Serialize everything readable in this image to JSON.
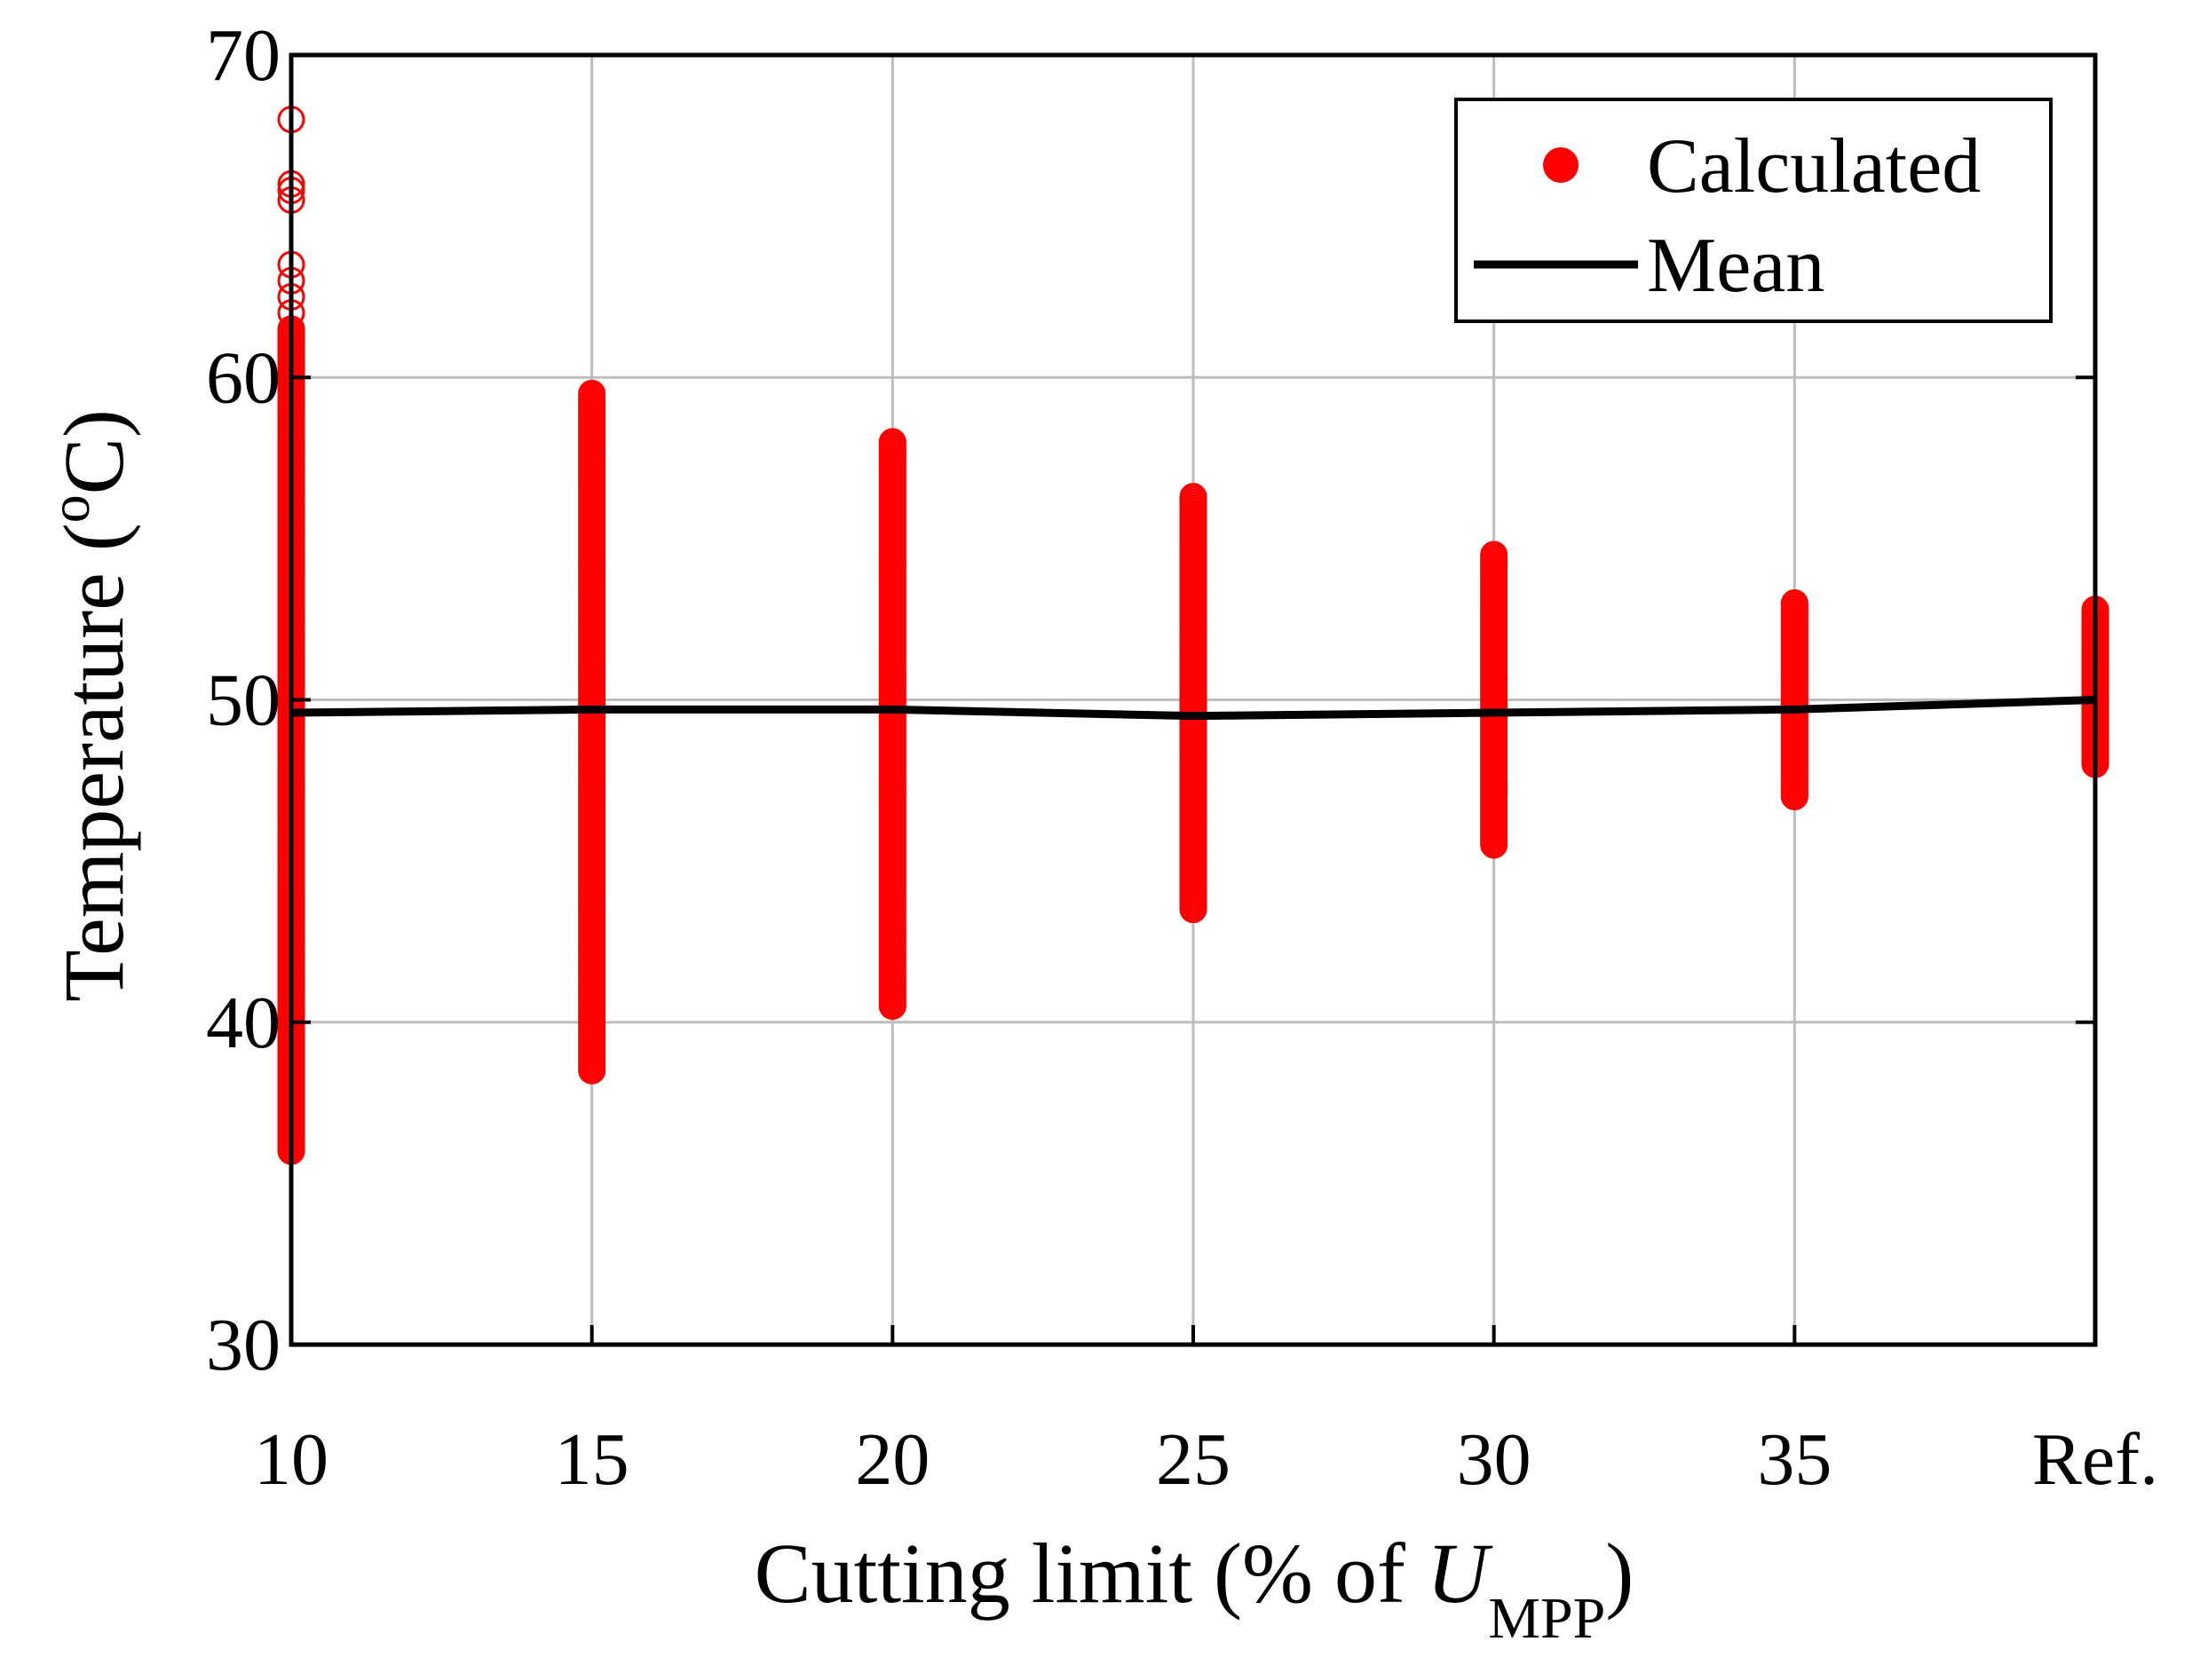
{
  "chart_data": {
    "type": "scatter",
    "title": "",
    "xlabel": {
      "prefix": "Cutting limit (% of ",
      "variable": "U",
      "subscript": "MPP",
      "suffix": ")"
    },
    "ylabel": {
      "prefix": "Temperature (",
      "superscript": "o",
      "unit": "C",
      "suffix": ")"
    },
    "categories": [
      "10",
      "15",
      "20",
      "25",
      "30",
      "35",
      "Ref."
    ],
    "yticks": [
      "30",
      "40",
      "50",
      "60",
      "70"
    ],
    "ylim": [
      30,
      70
    ],
    "grid": true,
    "legend": {
      "position": "top-right",
      "entries": [
        "Calculated",
        "Mean"
      ]
    },
    "colors": {
      "calculated": "#ff0000",
      "mean": "#000000",
      "grid": "#bdbdbd",
      "axis": "#000000"
    },
    "series": [
      {
        "name": "Calculated",
        "kind": "scatter",
        "ranges": [
          {
            "category": "10",
            "min": 36.0,
            "max": 61.5,
            "outliers": [
              62.0,
              62.5,
              63.0,
              63.5,
              65.5,
              65.8,
              66.0,
              68.0
            ]
          },
          {
            "category": "15",
            "min": 38.5,
            "max": 59.5,
            "outliers": []
          },
          {
            "category": "20",
            "min": 40.5,
            "max": 58.0,
            "outliers": []
          },
          {
            "category": "25",
            "min": 43.5,
            "max": 56.3,
            "outliers": []
          },
          {
            "category": "30",
            "min": 45.5,
            "max": 54.5,
            "outliers": []
          },
          {
            "category": "35",
            "min": 47.0,
            "max": 53.0,
            "outliers": []
          },
          {
            "category": "Ref.",
            "min": 48.0,
            "max": 52.8,
            "outliers": []
          }
        ]
      },
      {
        "name": "Mean",
        "kind": "line",
        "values": [
          49.6,
          49.7,
          49.7,
          49.5,
          49.6,
          49.7,
          50.0
        ]
      }
    ]
  }
}
